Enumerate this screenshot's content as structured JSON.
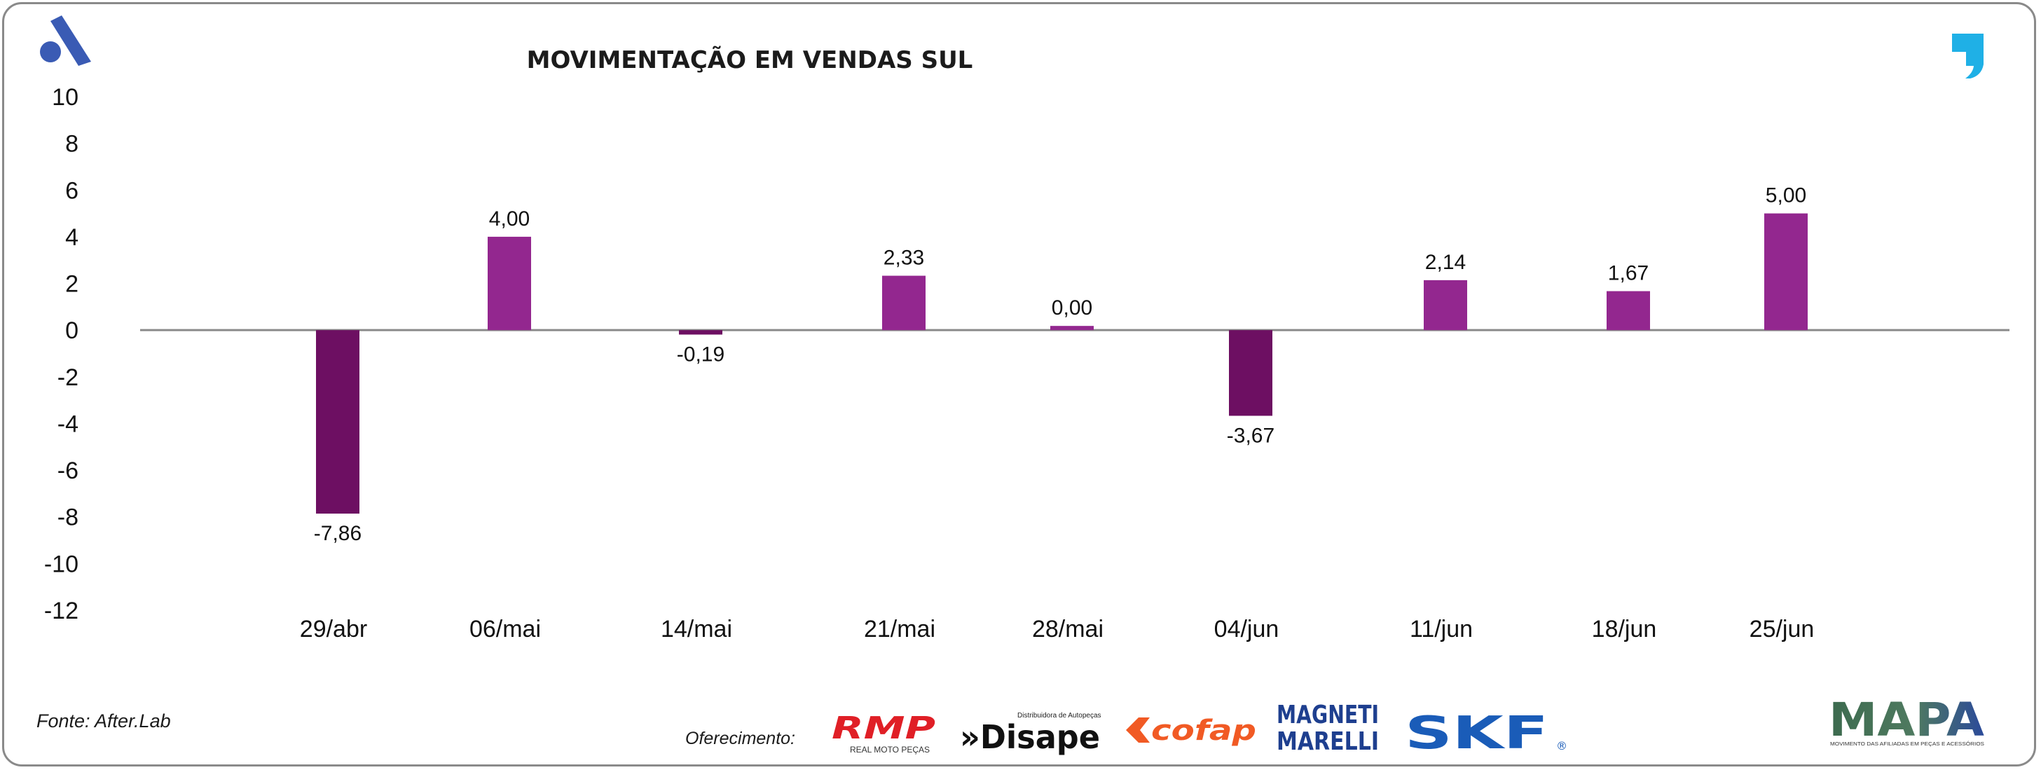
{
  "colors": {
    "bar_positive": "#93278f",
    "bar_negative": "#6d0f62",
    "zero_line": "#8a8a8a",
    "brand_blue": "#3a5bb4",
    "brand_cyan": "#1fb0e6",
    "rmp_red": "#e01f26",
    "cofap_orange": "#f15a24",
    "magneti_blue": "#1e3f8f",
    "skf_blue": "#1a5cb8",
    "mapa_green": "#3c6a4e",
    "mapa_blue": "#2b4a9a"
  },
  "header": {
    "logo_left": "afterlab-a-icon",
    "logo_right": "quote-comma-icon"
  },
  "chart_data": {
    "type": "bar",
    "title": "MOVIMENTAÇÃO EM VENDAS SUL",
    "categories": [
      "29/abr",
      "06/mai",
      "14/mai",
      "21/mai",
      "28/mai",
      "04/jun",
      "11/jun",
      "18/jun",
      "25/jun"
    ],
    "values": [
      -7.86,
      4.0,
      -0.19,
      2.33,
      0.0,
      -3.67,
      2.14,
      1.67,
      5.0
    ],
    "data_labels": [
      "-7,86",
      "4,00",
      "-0,19",
      "2,33",
      "0,00",
      "-3,67",
      "2,14",
      "1,67",
      "5,00"
    ],
    "ylim": [
      -12,
      10
    ],
    "yticks": [
      10,
      8,
      6,
      4,
      2,
      0,
      -2,
      -4,
      -6,
      -8,
      -10,
      -12
    ],
    "xlabel": "",
    "ylabel": "",
    "grid": false,
    "legend": "none"
  },
  "footer": {
    "source": "Fonte: After.Lab",
    "sponsor_label": "Oferecimento:",
    "rmp": {
      "name": "RMP",
      "sub": "REAL MOTO PEÇAS"
    },
    "disape": {
      "name": "»Disape",
      "sub": "Distribuidora de Autopeças"
    },
    "cofap": {
      "name": "cofap"
    },
    "magneti": {
      "line1": "MAGNETI",
      "line2": "MARELLI"
    },
    "skf": {
      "name": "SKF",
      "mark": "®"
    },
    "mapa": {
      "name": "MAPA",
      "sub": "MOVIMENTO DAS AFILIADAS EM PEÇAS E ACESSÓRIOS"
    }
  }
}
